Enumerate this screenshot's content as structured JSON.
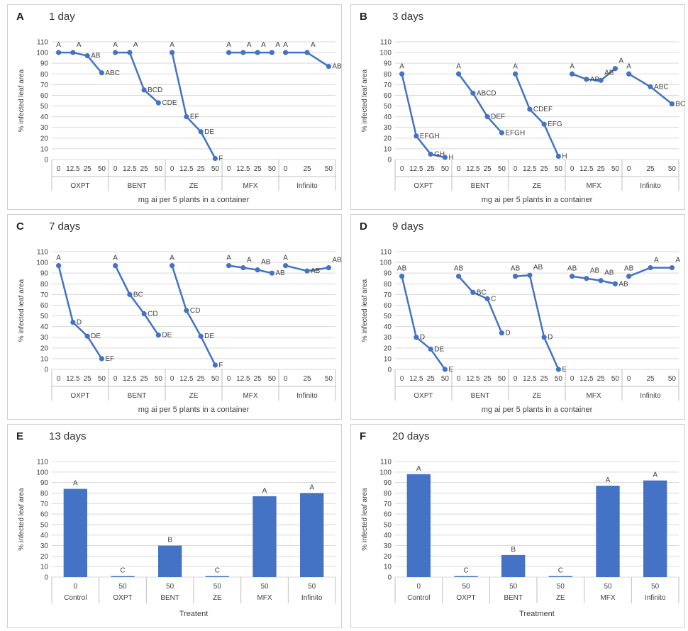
{
  "chart_data": [
    {
      "type": "line",
      "panel_label": "A",
      "title": "1 day",
      "ylabel": "% infected leaf area",
      "xlabel": "mg ai per 5 plants in a container",
      "ylim": [
        0,
        110
      ],
      "yticks": [
        0,
        10,
        20,
        30,
        40,
        50,
        60,
        70,
        80,
        90,
        100,
        110
      ],
      "groups": [
        {
          "name": "OXPT",
          "x": [
            "0",
            "12.5",
            "25",
            "50"
          ],
          "y": [
            100,
            100,
            97,
            81
          ],
          "labels": [
            "A",
            "A",
            "AB",
            "ABC"
          ]
        },
        {
          "name": "BENT",
          "x": [
            "0",
            "12.5",
            "25",
            "50"
          ],
          "y": [
            100,
            100,
            65,
            53
          ],
          "labels": [
            "A",
            "A",
            "BCD",
            "CDE"
          ]
        },
        {
          "name": "ZE",
          "x": [
            "0",
            "12.5",
            "25",
            "50"
          ],
          "y": [
            100,
            40,
            26,
            1
          ],
          "labels": [
            "A",
            "EF",
            "DE",
            "F"
          ]
        },
        {
          "name": "MFX",
          "x": [
            "0",
            "12.5",
            "25",
            "50"
          ],
          "y": [
            100,
            100,
            100,
            100
          ],
          "labels": [
            "A",
            "A",
            "A",
            "A"
          ]
        },
        {
          "name": "Infinito",
          "x": [
            "0",
            "25",
            "50"
          ],
          "y": [
            100,
            100,
            87
          ],
          "labels": [
            "A",
            "A",
            "AB"
          ]
        }
      ]
    },
    {
      "type": "line",
      "panel_label": "B",
      "title": "3 days",
      "ylabel": "% infected leaf area",
      "xlabel": "mg ai per 5 plants in a container",
      "ylim": [
        0,
        110
      ],
      "yticks": [
        0,
        10,
        20,
        30,
        40,
        50,
        60,
        70,
        80,
        90,
        100,
        110
      ],
      "groups": [
        {
          "name": "OXPT",
          "x": [
            "0",
            "12.5",
            "25",
            "50"
          ],
          "y": [
            80,
            22,
            5,
            2
          ],
          "labels": [
            "A",
            "EFGH",
            "GH",
            "H"
          ]
        },
        {
          "name": "BENT",
          "x": [
            "0",
            "12.5",
            "25",
            "50"
          ],
          "y": [
            80,
            62,
            40,
            25
          ],
          "labels": [
            "A",
            "ABCD",
            "DEF",
            "EFGH"
          ]
        },
        {
          "name": "ZE",
          "x": [
            "0",
            "12.5",
            "25",
            "50"
          ],
          "y": [
            80,
            47,
            33,
            3
          ],
          "labels": [
            "A",
            "CDEF",
            "EFG",
            "H"
          ]
        },
        {
          "name": "MFX",
          "x": [
            "0",
            "12.5",
            "25",
            "50"
          ],
          "y": [
            80,
            75,
            74,
            85
          ],
          "labels": [
            "A",
            "AB",
            "AB",
            "A"
          ]
        },
        {
          "name": "Infinito",
          "x": [
            "0",
            "25",
            "50"
          ],
          "y": [
            80,
            68,
            52
          ],
          "labels": [
            "A",
            "ABC",
            "BCDE"
          ]
        }
      ]
    },
    {
      "type": "line",
      "panel_label": "C",
      "title": "7 days",
      "ylabel": "% infected leaf area",
      "xlabel": "mg ai per 5 plants in a container",
      "ylim": [
        0,
        110
      ],
      "yticks": [
        0,
        10,
        20,
        30,
        40,
        50,
        60,
        70,
        80,
        90,
        100,
        110
      ],
      "groups": [
        {
          "name": "OXPT",
          "x": [
            "0",
            "12.5",
            "25",
            "50"
          ],
          "y": [
            97,
            44,
            31,
            10
          ],
          "labels": [
            "A",
            "D",
            "DE",
            "EF"
          ]
        },
        {
          "name": "BENT",
          "x": [
            "0",
            "12.5",
            "25",
            "50"
          ],
          "y": [
            97,
            70,
            52,
            32
          ],
          "labels": [
            "A",
            "BC",
            "CD",
            "DE"
          ]
        },
        {
          "name": "ZE",
          "x": [
            "0",
            "12.5",
            "25",
            "50"
          ],
          "y": [
            97,
            55,
            31,
            4
          ],
          "labels": [
            "A",
            "CD",
            "DE",
            "F"
          ]
        },
        {
          "name": "MFX",
          "x": [
            "0",
            "12.5",
            "25",
            "50"
          ],
          "y": [
            97,
            95,
            93,
            90
          ],
          "labels": [
            "A",
            "A",
            "AB",
            "AB"
          ]
        },
        {
          "name": "Infinito",
          "x": [
            "0",
            "25",
            "50"
          ],
          "y": [
            97,
            92,
            95
          ],
          "labels": [
            "A",
            "AB",
            "AB"
          ]
        }
      ]
    },
    {
      "type": "line",
      "panel_label": "D",
      "title": "9 days",
      "ylabel": "% infected leaf area",
      "xlabel": "mg ai per 5 plants in a container",
      "ylim": [
        0,
        110
      ],
      "yticks": [
        0,
        10,
        20,
        30,
        40,
        50,
        60,
        70,
        80,
        90,
        100,
        110
      ],
      "groups": [
        {
          "name": "OXPT",
          "x": [
            "0",
            "12.5",
            "25",
            "50"
          ],
          "y": [
            87,
            30,
            19,
            0
          ],
          "labels": [
            "AB",
            "D",
            "DE",
            "E"
          ]
        },
        {
          "name": "BENT",
          "x": [
            "0",
            "12.5",
            "25",
            "50"
          ],
          "y": [
            87,
            72,
            66,
            34
          ],
          "labels": [
            "AB",
            "BC",
            "C",
            "D"
          ]
        },
        {
          "name": "ZE",
          "x": [
            "0",
            "12.5",
            "25",
            "50"
          ],
          "y": [
            87,
            88,
            30,
            0
          ],
          "labels": [
            "AB",
            "AB",
            "D",
            "E"
          ]
        },
        {
          "name": "MFX",
          "x": [
            "0",
            "12.5",
            "25",
            "50"
          ],
          "y": [
            87,
            85,
            83,
            80
          ],
          "labels": [
            "AB",
            "AB",
            "AB",
            "AB"
          ]
        },
        {
          "name": "Infinito",
          "x": [
            "0",
            "25",
            "50"
          ],
          "y": [
            87,
            95,
            95
          ],
          "labels": [
            "AB",
            "A",
            "A"
          ]
        }
      ]
    },
    {
      "type": "bar",
      "panel_label": "E",
      "title": "13 days",
      "ylabel": "% infected leaf area",
      "xlabel": "Treatent",
      "ylim": [
        0,
        110
      ],
      "yticks": [
        0,
        10,
        20,
        30,
        40,
        50,
        60,
        70,
        80,
        90,
        100,
        110
      ],
      "groups": [
        {
          "name": "Control",
          "x": "0",
          "y": 84,
          "label": "A"
        },
        {
          "name": "OXPT",
          "x": "50",
          "y": 1,
          "label": "C"
        },
        {
          "name": "BENT",
          "x": "50",
          "y": 30,
          "label": "B"
        },
        {
          "name": "ZE",
          "x": "50",
          "y": 1,
          "label": "C"
        },
        {
          "name": "MFX",
          "x": "50",
          "y": 77,
          "label": "A"
        },
        {
          "name": "Infinito",
          "x": "50",
          "y": 80,
          "label": "A"
        }
      ]
    },
    {
      "type": "bar",
      "panel_label": "F",
      "title": "20 days",
      "ylabel": "% infected leaf area",
      "xlabel": "Treatment",
      "ylim": [
        0,
        110
      ],
      "yticks": [
        0,
        10,
        20,
        30,
        40,
        50,
        60,
        70,
        80,
        90,
        100,
        110
      ],
      "groups": [
        {
          "name": "Control",
          "x": "0",
          "y": 98,
          "label": "A"
        },
        {
          "name": "OXPT",
          "x": "50",
          "y": 1,
          "label": "C"
        },
        {
          "name": "BENT",
          "x": "50",
          "y": 21,
          "label": "B"
        },
        {
          "name": "ZE",
          "x": "50",
          "y": 1,
          "label": "C"
        },
        {
          "name": "MFX",
          "x": "50",
          "y": 87,
          "label": "A"
        },
        {
          "name": "Infinito",
          "x": "50",
          "y": 92,
          "label": "A"
        }
      ]
    }
  ],
  "colors": {
    "series": "#4472c4",
    "grid": "#d9d9d9",
    "axis": "#bfbfbf"
  }
}
